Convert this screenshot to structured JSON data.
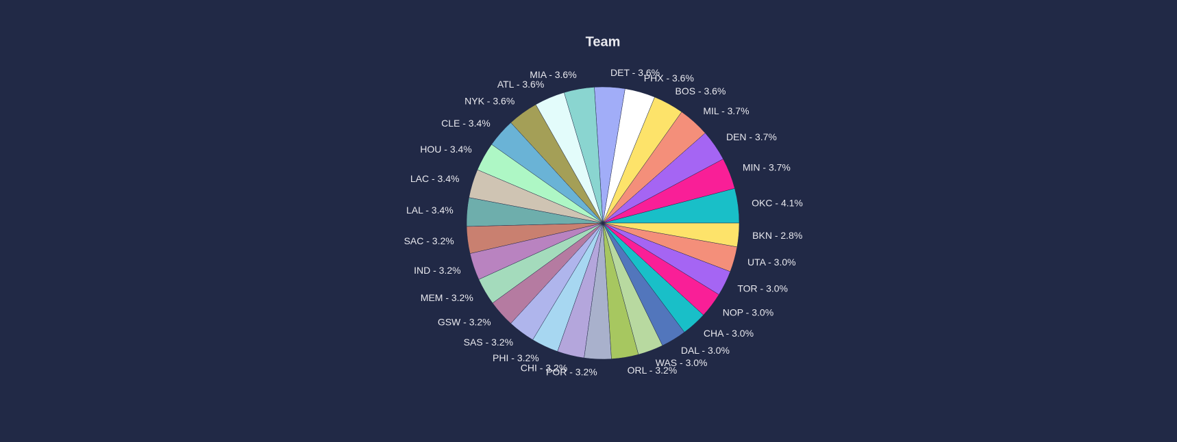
{
  "chart_data": {
    "type": "pie",
    "title": "Team",
    "labels": [
      "OKC - 4.1%",
      "MIN - 3.7%",
      "DEN - 3.7%",
      "MIL - 3.7%",
      "BOS - 3.6%",
      "PHX - 3.6%",
      "DET - 3.6%",
      "MIA - 3.6%",
      "ATL - 3.6%",
      "NYK - 3.6%",
      "CLE - 3.4%",
      "HOU - 3.4%",
      "LAC - 3.4%",
      "LAL - 3.4%",
      "SAC - 3.2%",
      "IND - 3.2%",
      "MEM - 3.2%",
      "GSW - 3.2%",
      "SAS - 3.2%",
      "PHI - 3.2%",
      "CHI - 3.2%",
      "POR - 3.2%",
      "ORL - 3.2%",
      "WAS - 3.0%",
      "DAL - 3.0%",
      "CHA - 3.0%",
      "NOP - 3.0%",
      "TOR - 3.0%",
      "UTA - 3.0%",
      "BKN - 2.8%"
    ],
    "values": [
      4.1,
      3.7,
      3.7,
      3.7,
      3.6,
      3.6,
      3.6,
      3.6,
      3.6,
      3.6,
      3.4,
      3.4,
      3.4,
      3.4,
      3.2,
      3.2,
      3.2,
      3.2,
      3.2,
      3.2,
      3.2,
      3.2,
      3.2,
      3.0,
      3.0,
      3.0,
      3.0,
      3.0,
      3.0,
      2.8
    ],
    "colors": [
      "#19bfc8",
      "#f91f97",
      "#a565f3",
      "#f48f7a",
      "#fde36a",
      "#ffffff",
      "#a1adf8",
      "#8ad5d0",
      "#e3fcfb",
      "#a49f57",
      "#6ab3d6",
      "#aef7c5",
      "#cfc4b3",
      "#6eaeac",
      "#c98070",
      "#b983c0",
      "#a4dbbc",
      "#b57ba1",
      "#afb5ec",
      "#a7d7f1",
      "#b4a6dc",
      "#a9b1cc",
      "#a7c760",
      "#b8d9a0",
      "#5276bc",
      "#19bfc8",
      "#f91f97",
      "#a565f3",
      "#f48f7a",
      "#fde36a"
    ]
  }
}
